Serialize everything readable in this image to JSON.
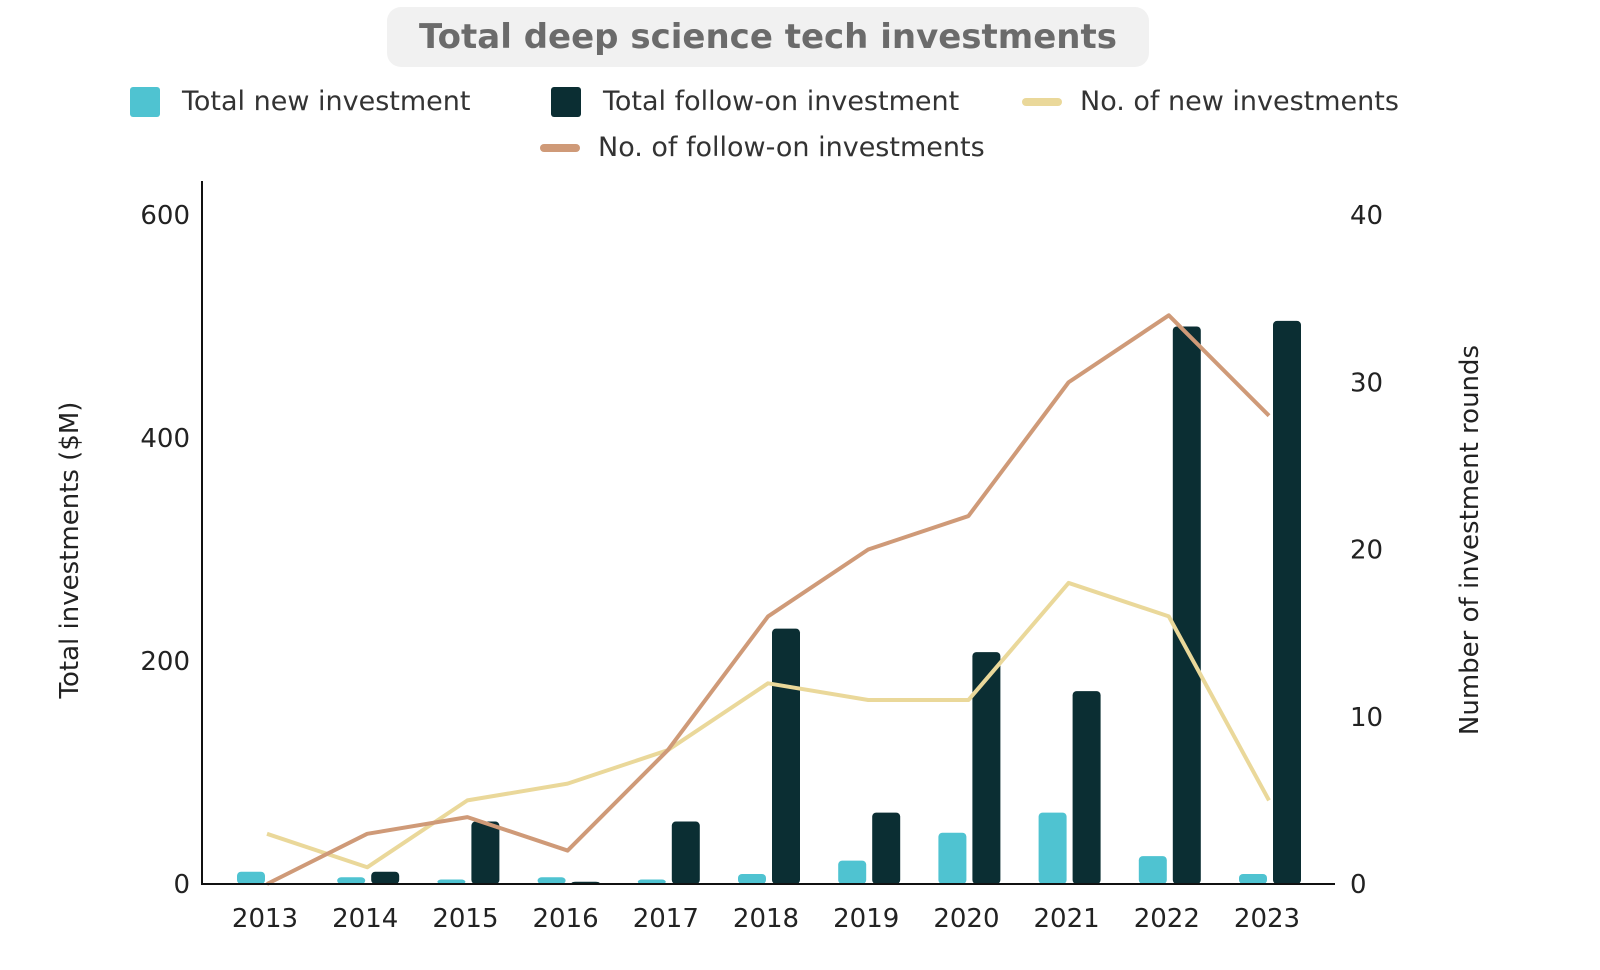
{
  "chart_data": {
    "type": "bar",
    "title": "Total deep science tech investments",
    "categories": [
      "2013",
      "2014",
      "2015",
      "2016",
      "2017",
      "2018",
      "2019",
      "2020",
      "2021",
      "2022",
      "2023"
    ],
    "ylabel": "Total investments ($M)",
    "y2label": "Number of investment rounds",
    "ylim": [
      0,
      600
    ],
    "y2lim": [
      0,
      40
    ],
    "yticks": [
      "0",
      "200",
      "400",
      "600"
    ],
    "y2ticks": [
      "0",
      "10",
      "20",
      "30",
      "40"
    ],
    "legend_position": "top",
    "series": [
      {
        "name": "Total new investment",
        "type": "bar",
        "axis": "left",
        "color": "#4fc3d1",
        "values": [
          11,
          6,
          4,
          6,
          4,
          9,
          21,
          46,
          64,
          25,
          9
        ]
      },
      {
        "name": "Total follow-on investment",
        "type": "bar",
        "axis": "left",
        "color": "#0b2e33",
        "values": [
          0,
          11,
          56,
          2,
          56,
          229,
          64,
          208,
          173,
          500,
          505
        ]
      },
      {
        "name": "No. of new investments",
        "type": "line",
        "axis": "right",
        "color": "#ead89a",
        "values": [
          3,
          1,
          5,
          6,
          8,
          12,
          11,
          11,
          18,
          16,
          5
        ]
      },
      {
        "name": "No. of follow-on investments",
        "type": "line",
        "axis": "right",
        "color": "#cf9a78",
        "values": [
          0,
          3,
          4,
          2,
          8,
          16,
          20,
          22,
          30,
          34,
          28
        ]
      }
    ]
  }
}
